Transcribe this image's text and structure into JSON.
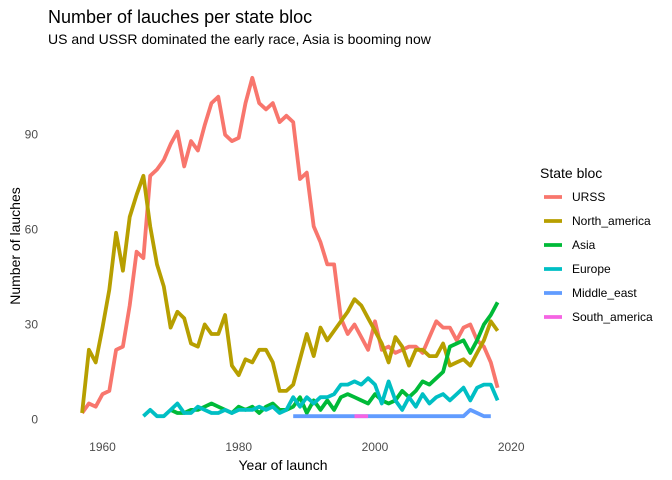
{
  "chart_data": {
    "type": "line",
    "title": "Number of lauches per state bloc",
    "subtitle": "US and USSR dominated the early race, Asia is booming now",
    "xlabel": "Year of launch",
    "ylabel": "Number of lauches",
    "xlim": [
      1952,
      2021
    ],
    "ylim": [
      -4,
      113
    ],
    "xticks": [
      1960,
      1980,
      2000,
      2020
    ],
    "yticks": [
      0,
      30,
      60,
      90
    ],
    "grid": false,
    "legend_title": "State bloc",
    "legend_position": "right",
    "series": [
      {
        "name": "URSS",
        "color": "#F8766D",
        "x": [
          1957,
          1958,
          1959,
          1960,
          1961,
          1962,
          1963,
          1964,
          1965,
          1966,
          1967,
          1968,
          1969,
          1970,
          1971,
          1972,
          1973,
          1974,
          1975,
          1976,
          1977,
          1978,
          1979,
          1980,
          1981,
          1982,
          1983,
          1984,
          1985,
          1986,
          1987,
          1988,
          1989,
          1990,
          1991,
          1992,
          1993,
          1994,
          1995,
          1996,
          1997,
          1998,
          1999,
          2000,
          2001,
          2002,
          2003,
          2004,
          2005,
          2006,
          2007,
          2008,
          2009,
          2010,
          2011,
          2012,
          2013,
          2014,
          2015,
          2016,
          2017,
          2018
        ],
        "values": [
          2,
          5,
          4,
          8,
          9,
          22,
          23,
          36,
          53,
          51,
          77,
          79,
          82,
          87,
          91,
          80,
          88,
          85,
          93,
          100,
          102,
          90,
          88,
          89,
          100,
          108,
          100,
          98,
          100,
          94,
          96,
          94,
          76,
          78,
          61,
          56,
          49,
          49,
          32,
          27,
          30,
          26,
          22,
          31,
          22,
          23,
          21,
          22,
          23,
          23,
          21,
          26,
          31,
          29,
          29,
          25,
          29,
          30,
          25,
          23,
          18,
          10
        ]
      },
      {
        "name": "North_america",
        "color": "#B79F00",
        "x": [
          1957,
          1958,
          1959,
          1960,
          1961,
          1962,
          1963,
          1964,
          1965,
          1966,
          1967,
          1968,
          1969,
          1970,
          1971,
          1972,
          1973,
          1974,
          1975,
          1976,
          1977,
          1978,
          1979,
          1980,
          1981,
          1982,
          1983,
          1984,
          1985,
          1986,
          1987,
          1988,
          1989,
          1990,
          1991,
          1992,
          1993,
          1994,
          1995,
          1996,
          1997,
          1998,
          1999,
          2000,
          2001,
          2002,
          2003,
          2004,
          2005,
          2006,
          2007,
          2008,
          2009,
          2010,
          2011,
          2012,
          2013,
          2014,
          2015,
          2016,
          2017,
          2018
        ],
        "values": [
          2,
          22,
          18,
          29,
          41,
          59,
          47,
          64,
          71,
          77,
          61,
          49,
          42,
          29,
          34,
          32,
          24,
          23,
          30,
          27,
          27,
          33,
          17,
          14,
          19,
          18,
          22,
          22,
          18,
          9,
          9,
          11,
          19,
          27,
          20,
          29,
          25,
          28,
          31,
          34,
          38,
          36,
          32,
          28,
          24,
          18,
          26,
          23,
          17,
          22,
          22,
          20,
          20,
          24,
          17,
          18,
          19,
          17,
          21,
          25,
          31,
          28
        ]
      },
      {
        "name": "Asia",
        "color": "#00BA38",
        "x": [
          1970,
          1971,
          1972,
          1973,
          1974,
          1975,
          1976,
          1977,
          1978,
          1979,
          1980,
          1981,
          1982,
          1983,
          1984,
          1985,
          1986,
          1987,
          1988,
          1989,
          1990,
          1991,
          1992,
          1993,
          1994,
          1995,
          1996,
          1997,
          1998,
          1999,
          2000,
          2001,
          2002,
          2003,
          2004,
          2005,
          2006,
          2007,
          2008,
          2009,
          2010,
          2011,
          2012,
          2013,
          2014,
          2015,
          2016,
          2017,
          2018
        ],
        "values": [
          3,
          2,
          2,
          3,
          3,
          4,
          5,
          4,
          3,
          2,
          4,
          3,
          4,
          2,
          4,
          5,
          3,
          3,
          4,
          7,
          2,
          6,
          3,
          6,
          3,
          7,
          8,
          7,
          6,
          5,
          8,
          6,
          5,
          6,
          9,
          7,
          9,
          12,
          11,
          13,
          15,
          23,
          24,
          25,
          21,
          25,
          30,
          33,
          37
        ]
      },
      {
        "name": "Europe",
        "color": "#00BFC4",
        "x": [
          1966,
          1967,
          1968,
          1969,
          1970,
          1971,
          1972,
          1973,
          1974,
          1975,
          1976,
          1977,
          1978,
          1979,
          1980,
          1981,
          1982,
          1983,
          1984,
          1985,
          1986,
          1987,
          1988,
          1989,
          1990,
          1991,
          1992,
          1993,
          1994,
          1995,
          1996,
          1997,
          1998,
          1999,
          2000,
          2001,
          2002,
          2003,
          2004,
          2005,
          2006,
          2007,
          2008,
          2009,
          2010,
          2011,
          2012,
          2013,
          2014,
          2015,
          2016,
          2017,
          2018
        ],
        "values": [
          1,
          3,
          1,
          1,
          3,
          5,
          2,
          2,
          4,
          3,
          2,
          2,
          3,
          2,
          3,
          3,
          3,
          4,
          3,
          4,
          2,
          3,
          7,
          4,
          7,
          5,
          7,
          7,
          8,
          11,
          11,
          12,
          11,
          13,
          11,
          5,
          12,
          6,
          3,
          7,
          4,
          8,
          5,
          7,
          8,
          6,
          8,
          10,
          6,
          10,
          11,
          11,
          6
        ]
      },
      {
        "name": "Middle_east",
        "color": "#619CFF",
        "x": [
          1988,
          1990,
          2000,
          2010,
          2013,
          2014,
          2015,
          2016,
          2017
        ],
        "values": [
          1,
          1,
          1,
          1,
          1,
          3,
          2,
          1,
          1
        ]
      },
      {
        "name": "South_america",
        "color": "#F564E3",
        "x": [
          1997,
          1999
        ],
        "values": [
          1,
          1
        ]
      }
    ]
  }
}
